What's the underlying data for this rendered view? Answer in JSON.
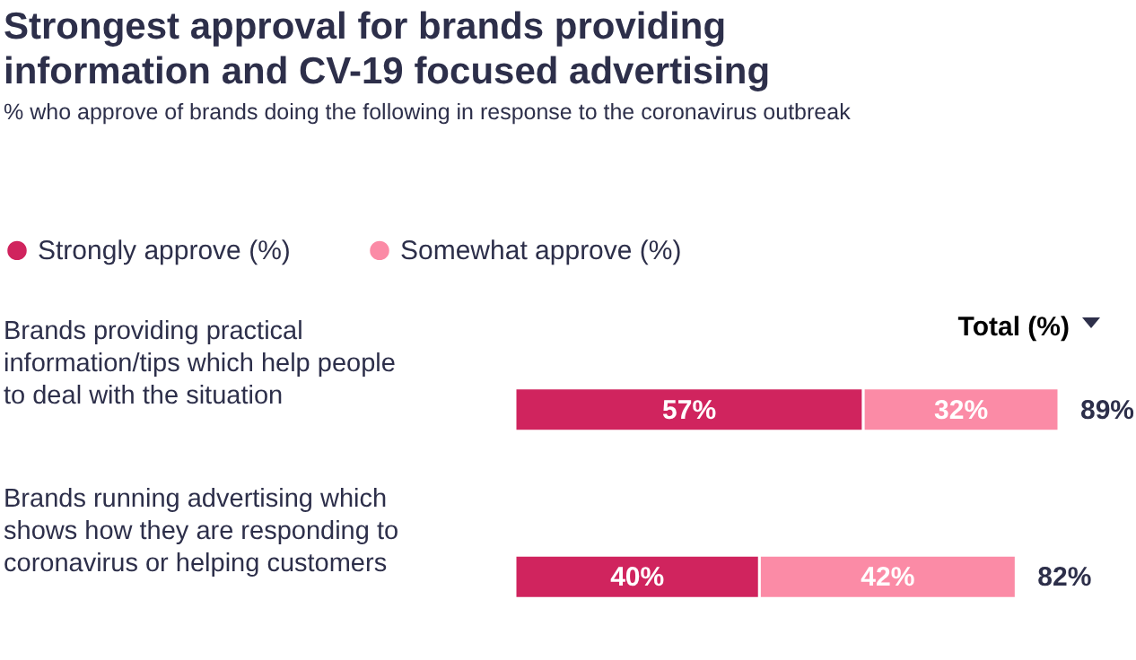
{
  "chart_data": {
    "type": "bar",
    "orientation": "horizontal",
    "stacked": true,
    "title": "Strongest approval for brands providing information and CV-19 focused advertising",
    "subtitle": "% who approve of brands doing the following in response to the coronavirus outbreak",
    "categories": [
      "Brands providing practical information/tips which help people to deal with the situation",
      "Brands running advertising which shows how they are responding to coronavirus or helping customers"
    ],
    "series": [
      {
        "name": "Strongly approve (%)",
        "color": "#d0245e",
        "values": [
          57,
          40
        ],
        "value_labels": [
          "57%",
          "40%"
        ]
      },
      {
        "name": "Somewhat approve (%)",
        "color": "#fb8ba6",
        "values": [
          32,
          42
        ],
        "value_labels": [
          "32%",
          "42%"
        ]
      }
    ],
    "totals": [
      "89%",
      "82%"
    ],
    "annotations": [
      "Total (%)"
    ],
    "legend": "top left"
  }
}
